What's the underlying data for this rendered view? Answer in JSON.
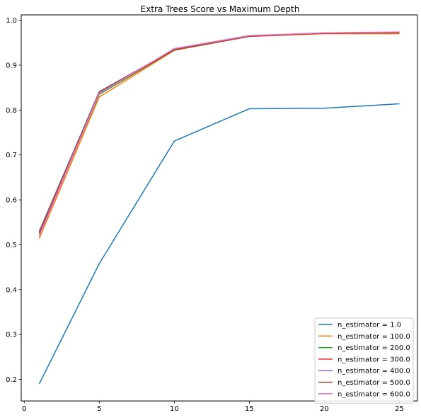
{
  "chart_data": {
    "type": "line",
    "title": "Extra Trees Score vs Maximum Depth",
    "xlabel": "",
    "ylabel": "",
    "xlim": [
      -0.2,
      26.2
    ],
    "ylim": [
      0.152,
      1.012
    ],
    "xticks": [
      0,
      5,
      10,
      15,
      20,
      25
    ],
    "yticks": [
      0.2,
      0.3,
      0.4,
      0.5,
      0.6,
      0.7,
      0.8,
      0.9,
      1.0
    ],
    "ytick_labels": [
      "0.2",
      "0.3",
      "0.4",
      "0.5",
      "0.6",
      "0.7",
      "0.8",
      "0.9",
      "1.0"
    ],
    "grid": false,
    "legend_position": "lower-right",
    "x": [
      1,
      5,
      10,
      15,
      20,
      25
    ],
    "series": [
      {
        "name": "n_estimator = 1.0",
        "color": "#1f77b4",
        "values": [
          0.19,
          0.458,
          0.731,
          0.803,
          0.804,
          0.814
        ]
      },
      {
        "name": "n_estimator = 100.0",
        "color": "#ff7f0e",
        "values": [
          0.514,
          0.829,
          0.933,
          0.964,
          0.97,
          0.97
        ]
      },
      {
        "name": "n_estimator = 200.0",
        "color": "#2ca02c",
        "values": [
          0.522,
          0.835,
          0.934,
          0.965,
          0.971,
          0.972
        ]
      },
      {
        "name": "n_estimator = 300.0",
        "color": "#d62728",
        "values": [
          0.526,
          0.838,
          0.934,
          0.964,
          0.971,
          0.972
        ]
      },
      {
        "name": "n_estimator = 400.0",
        "color": "#9467bd",
        "values": [
          0.528,
          0.84,
          0.935,
          0.965,
          0.972,
          0.973
        ]
      },
      {
        "name": "n_estimator = 500.0",
        "color": "#8c564b",
        "values": [
          0.53,
          0.841,
          0.935,
          0.965,
          0.972,
          0.973
        ]
      },
      {
        "name": "n_estimator = 600.0",
        "color": "#e377c2",
        "values": [
          0.519,
          0.837,
          0.937,
          0.966,
          0.972,
          0.974
        ]
      }
    ]
  }
}
